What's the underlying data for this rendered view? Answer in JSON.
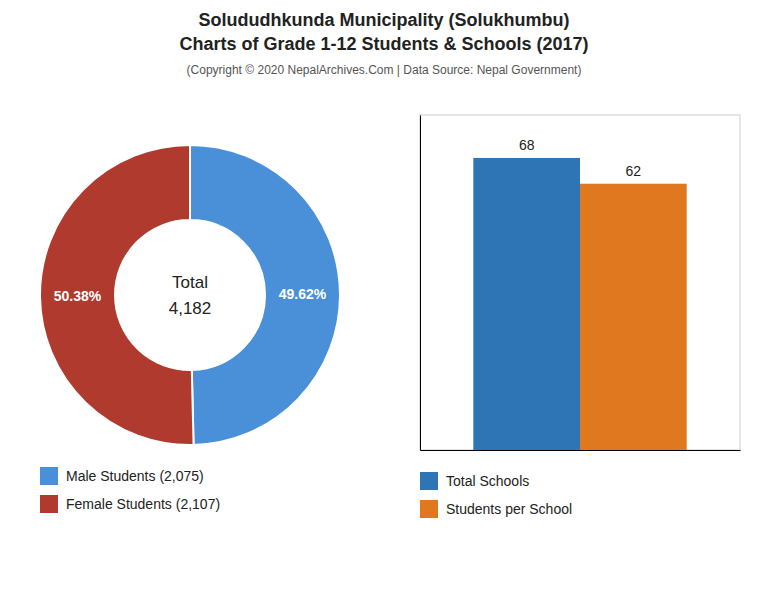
{
  "title": [
    "Solududhkunda Municipality (Solukhumbu)",
    "Charts of Grade 1-12 Students & Schools (2017)"
  ],
  "subtitle": "(Copyright © 2020 NepalArchives.Com | Data Source: Nepal Government)",
  "chart_data": [
    {
      "type": "donut",
      "categories": [
        "Male Students (2,075)",
        "Female Students (2,107)"
      ],
      "values": [
        49.62,
        50.38
      ],
      "value_labels": [
        "49.62%",
        "50.38%"
      ],
      "colors": [
        "#4A90D9",
        "#B03A2E"
      ],
      "data_labels": true,
      "annotations": [
        "Total",
        "4,182"
      ],
      "legend": "lower left"
    },
    {
      "type": "bar",
      "categories": [
        "Total Schools",
        "Students per School"
      ],
      "values": [
        68,
        62
      ],
      "colors": [
        "#2E75B6",
        "#E07820"
      ],
      "data_labels": true,
      "ylim": [
        0,
        78
      ],
      "yticks": [],
      "tick_labels": false,
      "legend": "lower left"
    }
  ]
}
